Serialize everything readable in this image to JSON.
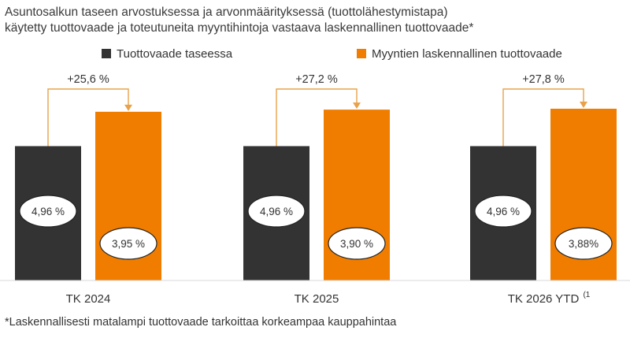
{
  "title_lines": [
    "Asuntosalkun taseen arvostuksessa ja arvonmäärityksessä (tuottolähestymistapa)",
    "käytetty tuottovaade  ja toteutuneita myyntihintoja vastaava laskennallinen  tuottovaade*"
  ],
  "footnote": "*Laskennallisesti matalampi tuottovaade tarkoittaa korkeampaa kauppahintaa",
  "colors": {
    "balance": "#333333",
    "sales": "#f07d00",
    "bracket": "#e8a24a"
  },
  "chart_data": {
    "type": "bar",
    "categories": [
      "TK 2024",
      "TK 2025",
      "TK 2026 YTD"
    ],
    "category_superscripts": [
      "",
      "",
      "(1"
    ],
    "series": [
      {
        "name": "Tuottovaade taseessa",
        "values": [
          4.96,
          4.96,
          4.96
        ],
        "labels": [
          "4,96 %",
          "4,96 %",
          "4,96 %"
        ]
      },
      {
        "name": "Myyntien laskennallinen tuottovaade",
        "values": [
          3.95,
          3.9,
          3.88
        ],
        "labels": [
          "3,95 %",
          "3,90 %",
          "3,88%"
        ]
      }
    ],
    "differences": [
      "+25,6 %",
      "+27,2 %",
      "+27,8 %"
    ],
    "legend_position": "top",
    "grid": false
  }
}
